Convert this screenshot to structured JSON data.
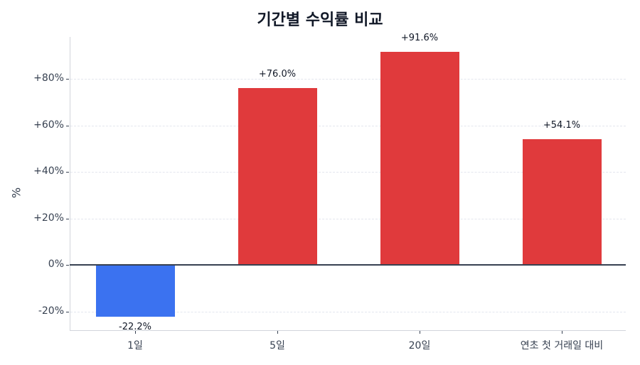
{
  "chart_data": {
    "type": "bar",
    "title": "기간별 수익률 비교",
    "xlabel": "",
    "ylabel": "%",
    "categories": [
      "1일",
      "5일",
      "20일",
      "연초 첫 거래일 대비"
    ],
    "values": [
      -22.2,
      76.0,
      91.6,
      54.1
    ],
    "value_labels": [
      "-22.2%",
      "+76.0%",
      "+91.6%",
      "+54.1%"
    ],
    "bar_colors": [
      "#3b72f0",
      "#e03a3c",
      "#e03a3c",
      "#e03a3c"
    ],
    "ylim": [
      -28,
      98
    ],
    "yticks": [
      -20,
      0,
      20,
      40,
      60,
      80
    ],
    "ytick_labels": [
      "-20%",
      "0%",
      "+20%",
      "+40%",
      "+60%",
      "+80%"
    ],
    "grid": true,
    "legend": null
  },
  "colors": {
    "positive": "#e03a3c",
    "negative": "#3b72f0",
    "zero_line": "#374151",
    "grid": "#e3e6ee"
  }
}
